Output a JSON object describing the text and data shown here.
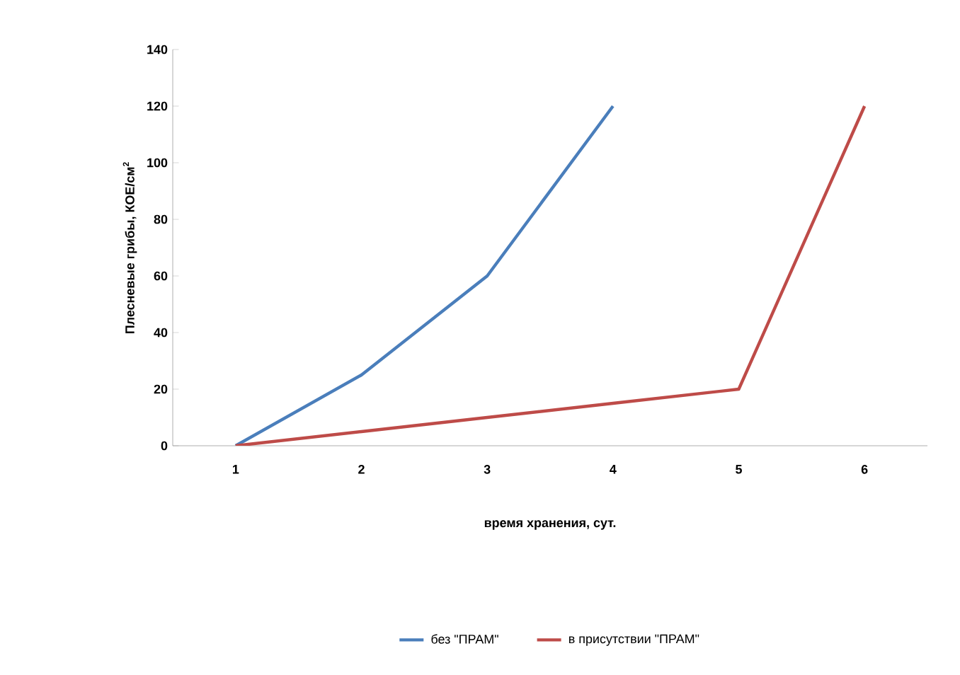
{
  "chart_data": {
    "type": "line",
    "xlabel": "время хранения, сут.",
    "ylabel": "Плесневые грибы, КОЕ/см$^{2}$",
    "categories": [
      "1",
      "2",
      "3",
      "4",
      "5",
      "6"
    ],
    "series": [
      {
        "name": "без \"ПРАМ\"",
        "color": "#4a7ebb",
        "values": [
          0,
          25,
          60,
          120,
          null,
          null
        ]
      },
      {
        "name": "в присутствии \"ПРАМ\"",
        "color": "#be4b48",
        "values": [
          0,
          5,
          10,
          15,
          20,
          120
        ]
      }
    ],
    "ylim": [
      0,
      140
    ],
    "yticks": [
      0,
      20,
      40,
      60,
      80,
      100,
      120,
      140
    ],
    "legend": "bottom",
    "marker": "none",
    "line_style": "solid"
  }
}
